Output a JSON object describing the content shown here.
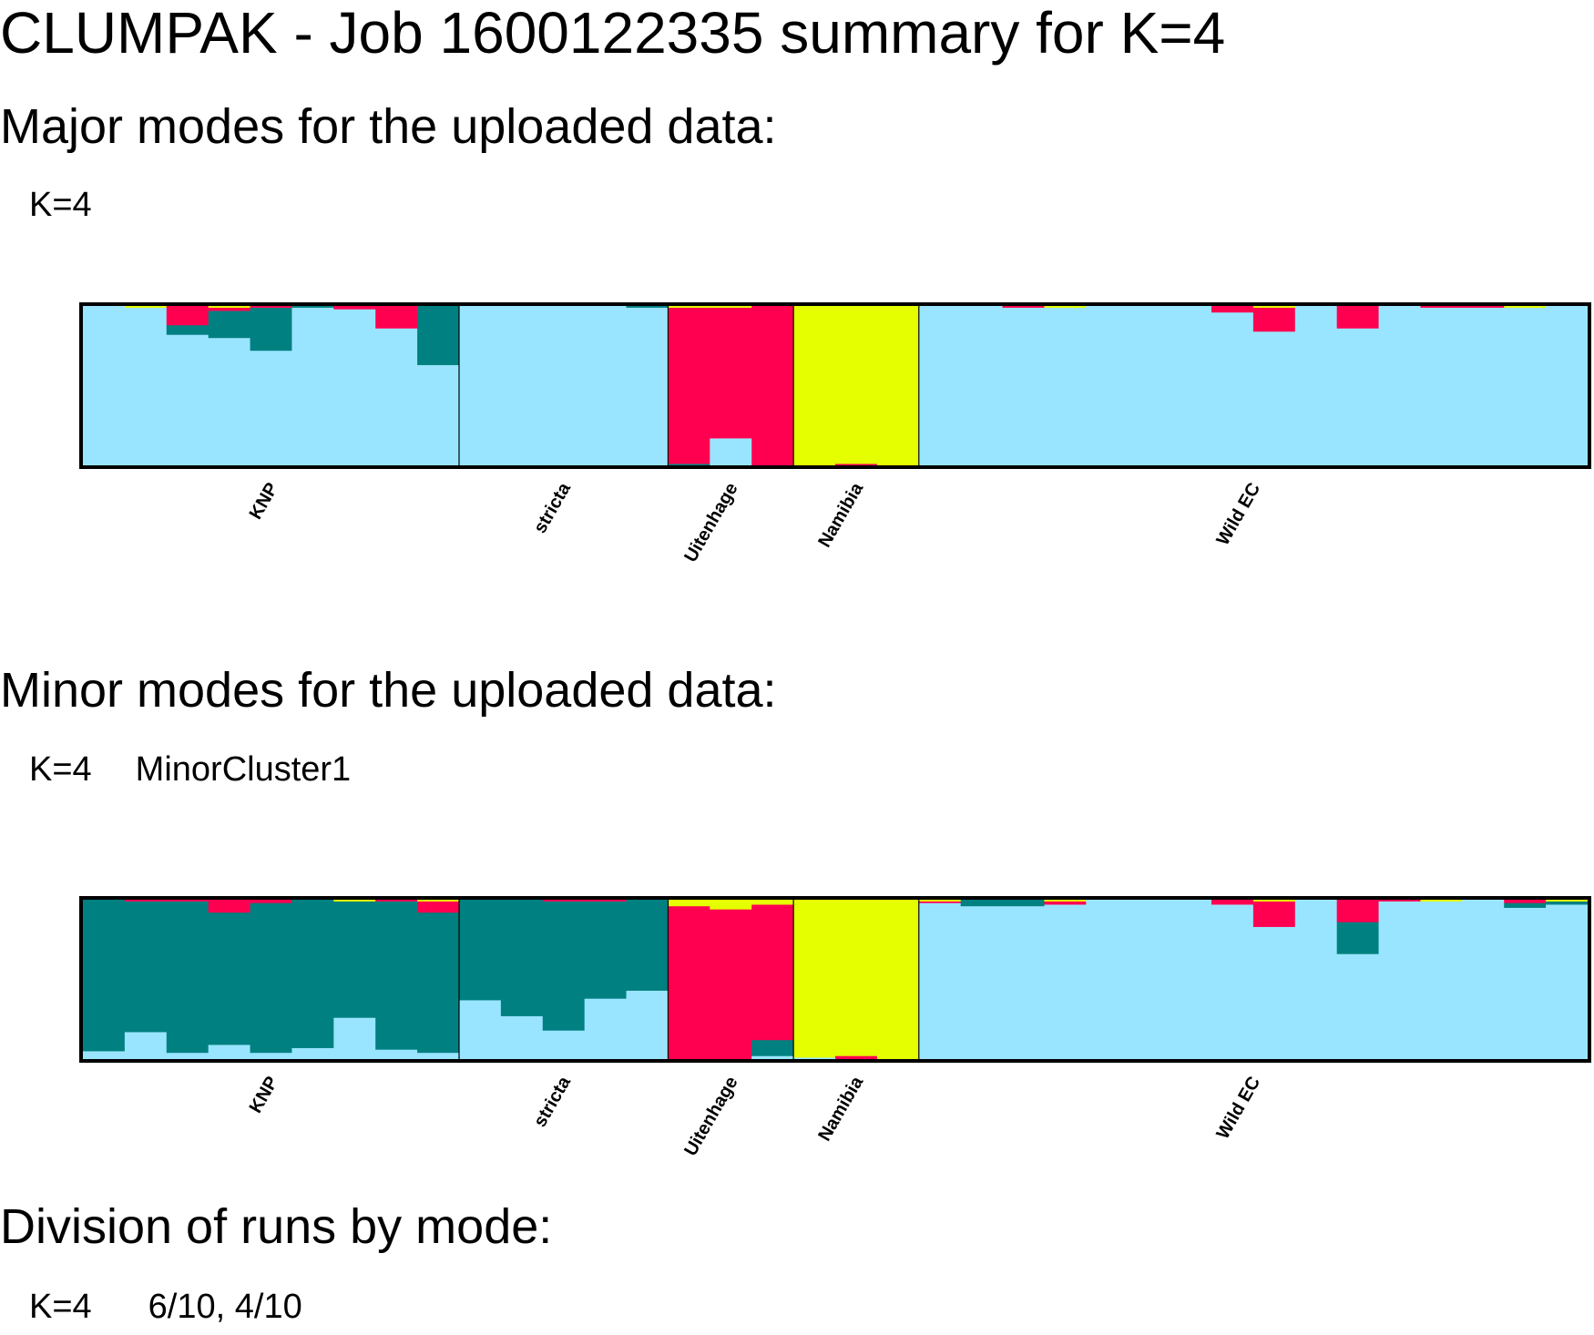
{
  "title": "CLUMPAK - Job 1600122335 summary for K=4",
  "major": {
    "heading": "Major modes for the uploaded data:",
    "k_label": "K=4"
  },
  "minor": {
    "heading": "Minor modes for the uploaded data:",
    "k_label": "K=4",
    "cluster_label": "MinorCluster1"
  },
  "division": {
    "heading": "Division of runs by mode:",
    "k_label": "K=4",
    "value": "6/10, 4/10"
  },
  "colors": {
    "light_blue": "#99E5FF",
    "teal": "#008080",
    "red": "#FF0050",
    "yellow": "#E5FF00",
    "orange": "#FF8000"
  },
  "chart_data": [
    {
      "type": "bar",
      "stacked": true,
      "name": "major-mode",
      "populations": [
        {
          "label": "KNP",
          "count": 9
        },
        {
          "label": "stricta",
          "count": 5
        },
        {
          "label": "Uitenhage",
          "count": 3
        },
        {
          "label": "Namibia",
          "count": 3
        },
        {
          "label": "Wild EC",
          "count": 16
        }
      ],
      "clusters": [
        "light_blue",
        "teal",
        "red",
        "yellow"
      ],
      "individuals": [
        [
          1.0,
          0.0,
          0.0,
          0.0
        ],
        [
          0.99,
          0.0,
          0.0,
          0.01
        ],
        [
          0.82,
          0.06,
          0.12,
          0.0
        ],
        [
          0.8,
          0.17,
          0.02,
          0.01
        ],
        [
          0.72,
          0.27,
          0.01,
          0.0
        ],
        [
          0.99,
          0.01,
          0.0,
          0.0
        ],
        [
          0.98,
          0.0,
          0.02,
          0.0
        ],
        [
          0.86,
          0.0,
          0.14,
          0.0
        ],
        [
          0.63,
          0.37,
          0.0,
          0.0
        ],
        [
          1.0,
          0.0,
          0.0,
          0.0
        ],
        [
          1.0,
          0.0,
          0.0,
          0.0
        ],
        [
          1.0,
          0.0,
          0.0,
          0.0
        ],
        [
          1.0,
          0.0,
          0.0,
          0.0
        ],
        [
          0.99,
          0.01,
          0.0,
          0.0
        ],
        [
          0.0,
          0.01,
          0.98,
          0.01
        ],
        [
          0.17,
          0.0,
          0.82,
          0.01
        ],
        [
          0.0,
          0.0,
          1.0,
          0.0
        ],
        [
          0.0,
          0.0,
          0.0,
          1.0
        ],
        [
          0.0,
          0.0,
          0.01,
          0.99
        ],
        [
          0.0,
          0.0,
          0.0,
          1.0
        ],
        [
          1.0,
          0.0,
          0.0,
          0.0
        ],
        [
          1.0,
          0.0,
          0.0,
          0.0
        ],
        [
          0.99,
          0.0,
          0.01,
          0.0
        ],
        [
          0.99,
          0.0,
          0.0,
          0.01
        ],
        [
          1.0,
          0.0,
          0.0,
          0.0
        ],
        [
          1.0,
          0.0,
          0.0,
          0.0
        ],
        [
          1.0,
          0.0,
          0.0,
          0.0
        ],
        [
          0.96,
          0.0,
          0.04,
          0.0
        ],
        [
          0.84,
          0.0,
          0.15,
          0.01
        ],
        [
          1.0,
          0.0,
          0.0,
          0.0
        ],
        [
          0.86,
          0.0,
          0.14,
          0.0
        ],
        [
          1.0,
          0.0,
          0.0,
          0.0
        ],
        [
          0.99,
          0.0,
          0.01,
          0.0
        ],
        [
          0.99,
          0.0,
          0.01,
          0.0
        ],
        [
          0.99,
          0.0,
          0.0,
          0.01
        ],
        [
          1.0,
          0.0,
          0.0,
          0.0
        ]
      ]
    },
    {
      "type": "bar",
      "stacked": true,
      "name": "minor-mode",
      "populations": [
        {
          "label": "KNP",
          "count": 9
        },
        {
          "label": "stricta",
          "count": 5
        },
        {
          "label": "Uitenhage",
          "count": 3
        },
        {
          "label": "Namibia",
          "count": 3
        },
        {
          "label": "Wild EC",
          "count": 16
        }
      ],
      "clusters": [
        "light_blue",
        "teal",
        "red",
        "yellow"
      ],
      "individuals": [
        [
          0.05,
          0.95,
          0.0,
          0.0
        ],
        [
          0.17,
          0.82,
          0.01,
          0.0
        ],
        [
          0.04,
          0.95,
          0.01,
          0.0
        ],
        [
          0.09,
          0.83,
          0.08,
          0.0
        ],
        [
          0.04,
          0.94,
          0.02,
          0.0
        ],
        [
          0.07,
          0.93,
          0.0,
          0.0
        ],
        [
          0.26,
          0.73,
          0.0,
          0.01
        ],
        [
          0.06,
          0.93,
          0.01,
          0.0
        ],
        [
          0.04,
          0.88,
          0.07,
          0.01
        ],
        [
          0.37,
          0.63,
          0.0,
          0.0
        ],
        [
          0.27,
          0.73,
          0.0,
          0.0
        ],
        [
          0.18,
          0.81,
          0.01,
          0.0
        ],
        [
          0.38,
          0.61,
          0.01,
          0.0
        ],
        [
          0.43,
          0.57,
          0.0,
          0.0
        ],
        [
          0.0,
          0.0,
          0.96,
          0.04
        ],
        [
          0.0,
          0.0,
          0.94,
          0.06
        ],
        [
          0.02,
          0.1,
          0.85,
          0.03
        ],
        [
          0.01,
          0.0,
          0.0,
          0.99
        ],
        [
          0.0,
          0.0,
          0.02,
          0.98
        ],
        [
          0.0,
          0.0,
          0.0,
          1.0
        ],
        [
          0.98,
          0.0,
          0.01,
          0.01
        ],
        [
          0.96,
          0.04,
          0.0,
          0.0
        ],
        [
          0.96,
          0.04,
          0.0,
          0.0
        ],
        [
          0.97,
          0.0,
          0.02,
          0.01
        ],
        [
          1.0,
          0.0,
          0.0,
          0.0
        ],
        [
          1.0,
          0.0,
          0.0,
          0.0
        ],
        [
          1.0,
          0.0,
          0.0,
          0.0
        ],
        [
          0.97,
          0.0,
          0.03,
          0.0
        ],
        [
          0.83,
          0.0,
          0.16,
          0.01
        ],
        [
          1.0,
          0.0,
          0.0,
          0.0
        ],
        [
          0.66,
          0.2,
          0.14,
          0.0
        ],
        [
          0.99,
          0.0,
          0.01,
          0.0
        ],
        [
          0.99,
          0.0,
          0.0,
          0.01
        ],
        [
          1.0,
          0.0,
          0.0,
          0.0
        ],
        [
          0.95,
          0.03,
          0.02,
          0.0
        ],
        [
          0.97,
          0.02,
          0.0,
          0.01
        ]
      ]
    }
  ]
}
